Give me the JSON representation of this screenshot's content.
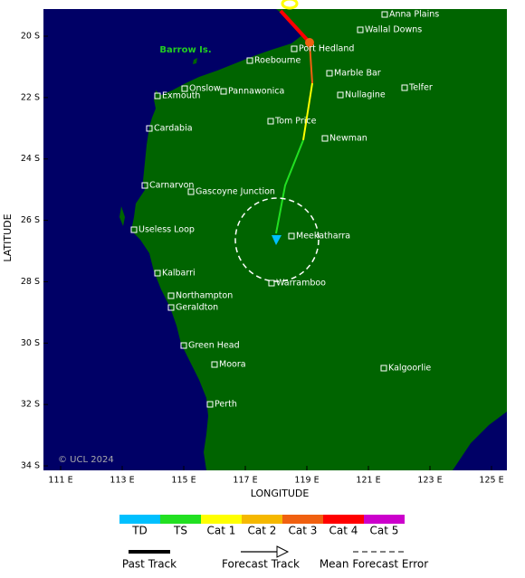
{
  "map": {
    "barrow_label": "Barrow Is.",
    "copyright": "© UCL 2024",
    "places": [
      "Anna Plains",
      "Wallal Downs",
      "Port Hedland",
      "Roebourne",
      "Marble Bar",
      "Onslow",
      "Pannawonica",
      "Telfer",
      "Exmouth",
      "Nullagine",
      "Tom Price",
      "Cardabia",
      "Newman",
      "Carnarvon",
      "Gascoyne Junction",
      "Useless Loop",
      "Meekatharra",
      "Kalbarri",
      "Warramboo",
      "Northampton",
      "Geraldton",
      "Green Head",
      "Moora",
      "Kalgoorlie",
      "Perth"
    ],
    "x_axis": {
      "label": "LONGITUDE",
      "ticks": [
        {
          "value": 111,
          "label": "111 E"
        },
        {
          "value": 113,
          "label": "113 E"
        },
        {
          "value": 115,
          "label": "115 E"
        },
        {
          "value": 117,
          "label": "117 E"
        },
        {
          "value": 119,
          "label": "119 E"
        },
        {
          "value": 121,
          "label": "121 E"
        },
        {
          "value": 123,
          "label": "123 E"
        },
        {
          "value": 125,
          "label": "125 E"
        }
      ]
    },
    "y_axis": {
      "label": "LATITUDE",
      "ticks": [
        {
          "value": 20,
          "label": "20 S"
        },
        {
          "value": 22,
          "label": "22 S"
        },
        {
          "value": 24,
          "label": "24 S"
        },
        {
          "value": 26,
          "label": "26 S"
        },
        {
          "value": 28,
          "label": "28 S"
        },
        {
          "value": 30,
          "label": "30 S"
        },
        {
          "value": 32,
          "label": "32 S"
        },
        {
          "value": 34,
          "label": "34 S"
        }
      ]
    }
  },
  "legend": {
    "categories": [
      {
        "label": "TD",
        "color": "#00c0ff"
      },
      {
        "label": "TS",
        "color": "#22e022"
      },
      {
        "label": "Cat 1",
        "color": "#ffff00"
      },
      {
        "label": "Cat 2",
        "color": "#f5b800"
      },
      {
        "label": "Cat 3",
        "color": "#f06010"
      },
      {
        "label": "Cat 4",
        "color": "#ff0000"
      },
      {
        "label": "Cat 5",
        "color": "#cc00cc"
      }
    ],
    "lines": [
      "Past Track",
      "Forecast Track",
      "Mean Forecast Error"
    ]
  }
}
